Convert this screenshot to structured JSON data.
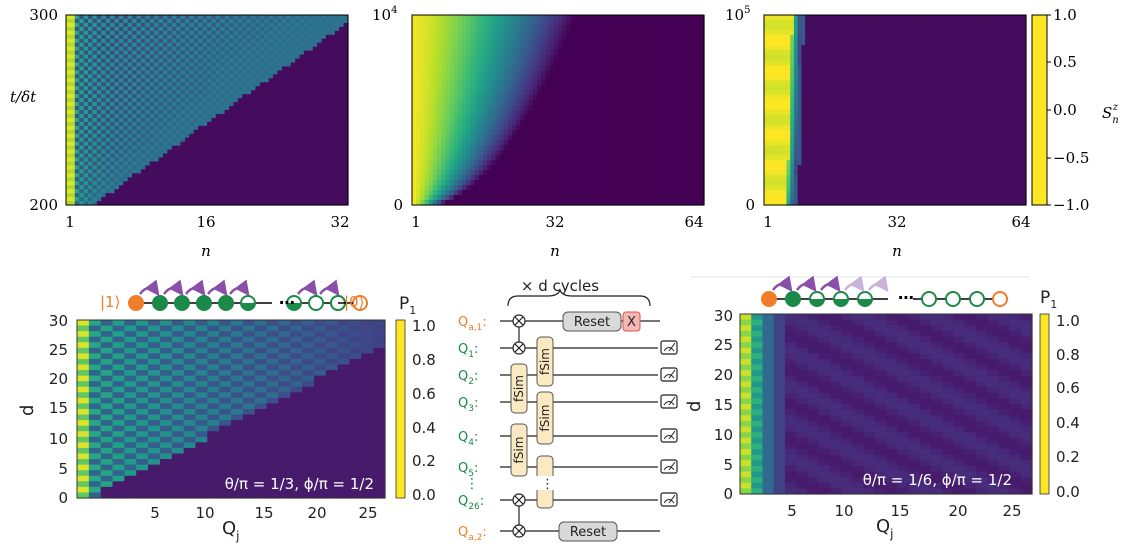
{
  "colormap": [
    "#fde725",
    "#b5de2b",
    "#6ece58",
    "#35b779",
    "#1f9e89",
    "#26828e",
    "#31688e",
    "#3e4989",
    "#482878",
    "#440154"
  ],
  "colors": {
    "orange": "#f07d2a",
    "green": "#1b8a48",
    "purple": "#8a4fa8",
    "lightpurple": "#c9b3da",
    "gate_fill": "#fbe9c2",
    "reset_fill": "#d9d9d9",
    "x_fill": "#f4b7b3",
    "x_stroke": "#d9534f"
  },
  "top_row": {
    "colorbar": {
      "label": "S_n^z",
      "ticks": [
        "1.0",
        "0.5",
        "0.0",
        "−0.5",
        "−1.0"
      ]
    },
    "panels": [
      {
        "xticks": [
          "1",
          "16",
          "32"
        ],
        "yticks": [
          "300",
          "200"
        ],
        "xlabel": "n",
        "ylabel": "t/δt"
      },
      {
        "xticks": [
          "1",
          "32",
          "64"
        ],
        "yticks_top": "10",
        "yticks_top_exp": "4",
        "ytick_bottom": "0",
        "xlabel": "n"
      },
      {
        "xticks": [
          "1",
          "32",
          "64"
        ],
        "yticks_top": "10",
        "yticks_top_exp": "5",
        "ytick_bottom": "0",
        "xlabel": "n"
      }
    ]
  },
  "bottom_left": {
    "yticks": [
      "30",
      "25",
      "20",
      "15",
      "10",
      "5",
      "0"
    ],
    "xticks": [
      "5",
      "10",
      "15",
      "20",
      "25"
    ],
    "ylabel": "d",
    "xlabel": "Q",
    "xlabel_sub": "j",
    "annotation": "θ/π = 1/3, ϕ/π = 1/2",
    "colorbar": {
      "label": "P",
      "label_sub": "1",
      "ticks": [
        "1.0",
        "0.8",
        "0.6",
        "0.4",
        "0.2",
        "0.0"
      ]
    },
    "chain_left": "|1⟩",
    "chain_right": "|0⟩",
    "ellipsis": "⋯"
  },
  "circuit": {
    "title": "× d cycles",
    "qubits": [
      {
        "label": "Q",
        "sub": "a,1",
        "suffix": ":"
      },
      {
        "label": "Q",
        "sub": "1",
        "suffix": ":"
      },
      {
        "label": "Q",
        "sub": "2",
        "suffix": ":"
      },
      {
        "label": "Q",
        "sub": "3",
        "suffix": ":"
      },
      {
        "label": "Q",
        "sub": "4",
        "suffix": ":"
      },
      {
        "label": "Q",
        "sub": "5",
        "suffix": ":"
      },
      {
        "label": "Q",
        "sub": "26",
        "suffix": ":"
      },
      {
        "label": "Q",
        "sub": "a,2",
        "suffix": ":"
      }
    ],
    "gate": "fSim",
    "reset": "Reset",
    "x": "X",
    "vdots": "⋮"
  },
  "bottom_right": {
    "yticks": [
      "30",
      "25",
      "20",
      "15",
      "10",
      "5",
      "0"
    ],
    "xticks": [
      "5",
      "10",
      "15",
      "20",
      "25"
    ],
    "ylabel": "d",
    "xlabel": "Q",
    "xlabel_sub": "j",
    "annotation": "θ/π = 1/6, ϕ/π = 1/2",
    "colorbar": {
      "label": "P",
      "label_sub": "1",
      "ticks": [
        "1.0",
        "0.8",
        "0.6",
        "0.4",
        "0.2",
        "0.0"
      ]
    },
    "ellipsis": "⋯"
  }
}
